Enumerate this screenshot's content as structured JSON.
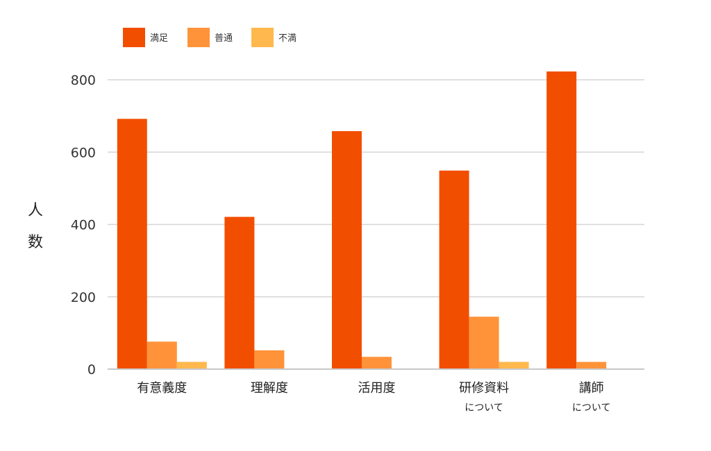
{
  "chart_data": {
    "type": "bar",
    "categories": [
      {
        "main": "有意義度",
        "sub": ""
      },
      {
        "main": "理解度",
        "sub": ""
      },
      {
        "main": "活用度",
        "sub": ""
      },
      {
        "main": "研修資料",
        "sub": "について"
      },
      {
        "main": "講師",
        "sub": "について"
      }
    ],
    "series": [
      {
        "name": "満足",
        "color": "#f24e00",
        "values": [
          692,
          421,
          658,
          549,
          823
        ]
      },
      {
        "name": "普通",
        "color": "#ff933a",
        "values": [
          76,
          52,
          34,
          145,
          20
        ]
      },
      {
        "name": "不満",
        "color": "#ffb84d",
        "values": [
          20,
          0,
          0,
          20,
          0
        ]
      }
    ],
    "ylabel": "人数",
    "ylim": [
      0,
      800
    ],
    "yticks": [
      0,
      200,
      400,
      600,
      800
    ],
    "grid": true,
    "gridColor": "#d6d6d6",
    "axisColor": "#c8c8c8",
    "legend": "top-left"
  }
}
